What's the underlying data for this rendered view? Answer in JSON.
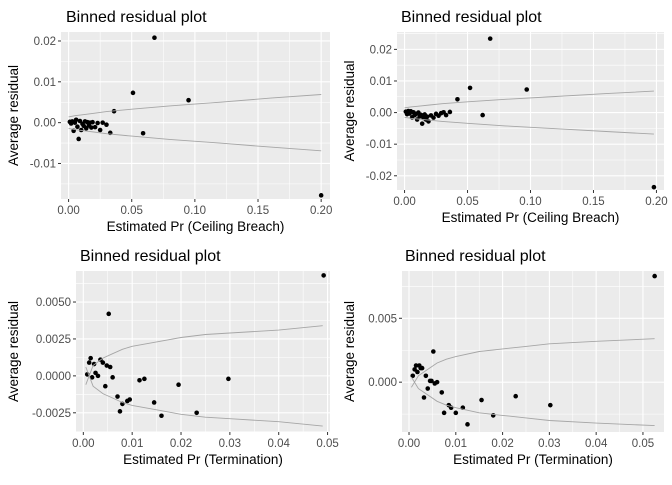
{
  "chart_data": [
    {
      "type": "scatter",
      "title": "Binned residual plot",
      "xlabel": "Estimated  Pr (Ceiling Breach)",
      "ylabel": "Average residual",
      "xlim": [
        -0.006,
        0.207
      ],
      "ylim": [
        -0.0187,
        0.0222
      ],
      "xticks": [
        0.0,
        0.05,
        0.1,
        0.15,
        0.2
      ],
      "xtick_labels": [
        "0.00",
        "0.05",
        "0.10",
        "0.15",
        "0.20"
      ],
      "yticks": [
        -0.01,
        0.0,
        0.01,
        0.02
      ],
      "ytick_labels": [
        "-0.01",
        "0.00",
        "0.01",
        "0.02"
      ],
      "grid": true,
      "series": [
        {
          "kind": "points",
          "x": [
            0.001,
            0.002,
            0.003,
            0.004,
            0.005,
            0.006,
            0.007,
            0.008,
            0.009,
            0.01,
            0.011,
            0.012,
            0.013,
            0.014,
            0.015,
            0.016,
            0.017,
            0.018,
            0.019,
            0.021,
            0.023,
            0.025,
            0.027,
            0.03,
            0.033,
            0.036,
            0.051,
            0.059,
            0.068,
            0.095,
            0.2
          ],
          "y": [
            0.0002,
            -0.0002,
            0.0003,
            -0.002,
            0.0,
            0.0007,
            -0.001,
            -0.004,
            0.0004,
            -0.0018,
            -0.0003,
            -0.0008,
            0.0003,
            -0.0014,
            0.0001,
            -0.0007,
            0.0,
            -0.0012,
            0.0001,
            -0.0011,
            -0.0001,
            -0.0018,
            0.0,
            -0.0005,
            -0.0025,
            0.0028,
            0.0073,
            -0.0026,
            0.0208,
            0.0055,
            -0.0178
          ]
        },
        {
          "kind": "upper-bound",
          "x": [
            0.0,
            0.005,
            0.01,
            0.02,
            0.03,
            0.05,
            0.08,
            0.12,
            0.16,
            0.2
          ],
          "y": [
            0.0014,
            0.0017,
            0.0019,
            0.0023,
            0.0027,
            0.0033,
            0.0041,
            0.005,
            0.006,
            0.0069
          ]
        },
        {
          "kind": "lower-bound",
          "x": [
            0.0,
            0.005,
            0.01,
            0.02,
            0.03,
            0.05,
            0.08,
            0.12,
            0.16,
            0.2
          ],
          "y": [
            -0.0014,
            -0.0017,
            -0.0019,
            -0.0023,
            -0.0027,
            -0.0033,
            -0.0041,
            -0.005,
            -0.006,
            -0.0069
          ]
        }
      ]
    },
    {
      "type": "scatter",
      "title": "Binned residual plot",
      "xlabel": "Estimated  Pr (Ceiling Breach)",
      "ylabel": "Average residual",
      "xlim": [
        -0.006,
        0.206
      ],
      "ylim": [
        -0.0245,
        0.0255
      ],
      "xticks": [
        0.0,
        0.05,
        0.1,
        0.15,
        0.2
      ],
      "xtick_labels": [
        "0.00",
        "0.05",
        "0.10",
        "0.15",
        "0.20"
      ],
      "yticks": [
        -0.02,
        -0.01,
        0.0,
        0.01,
        0.02
      ],
      "ytick_labels": [
        "-0.02",
        "-0.01",
        "0.00",
        "0.01",
        "0.02"
      ],
      "grid": true,
      "series": [
        {
          "kind": "points",
          "x": [
            0.001,
            0.002,
            0.003,
            0.004,
            0.005,
            0.006,
            0.007,
            0.008,
            0.009,
            0.01,
            0.011,
            0.012,
            0.013,
            0.014,
            0.015,
            0.016,
            0.017,
            0.018,
            0.019,
            0.021,
            0.023,
            0.025,
            0.027,
            0.029,
            0.031,
            0.033,
            0.036,
            0.042,
            0.052,
            0.062,
            0.068,
            0.097,
            0.198
          ],
          "y": [
            0.0003,
            -0.0005,
            0.0005,
            -0.0003,
            0.0004,
            -0.0015,
            0.0001,
            -0.0008,
            -0.0004,
            -0.0022,
            0.0,
            -0.0012,
            -0.0007,
            -0.0035,
            -0.0017,
            -0.0006,
            -0.0022,
            -0.0013,
            -0.0028,
            -0.0009,
            -0.0016,
            -0.0004,
            -0.001,
            -0.0002,
            0.0001,
            -0.0008,
            0.0002,
            0.0042,
            0.0078,
            -0.0008,
            0.0234,
            0.0073,
            -0.0236
          ]
        },
        {
          "kind": "upper-bound",
          "x": [
            0.0,
            0.005,
            0.01,
            0.02,
            0.03,
            0.05,
            0.08,
            0.12,
            0.16,
            0.198
          ],
          "y": [
            0.0015,
            0.0018,
            0.002,
            0.0024,
            0.0028,
            0.0034,
            0.0042,
            0.0051,
            0.006,
            0.0068
          ]
        },
        {
          "kind": "lower-bound",
          "x": [
            0.0,
            0.005,
            0.01,
            0.02,
            0.03,
            0.05,
            0.08,
            0.12,
            0.16,
            0.198
          ],
          "y": [
            -0.0015,
            -0.0018,
            -0.002,
            -0.0024,
            -0.0028,
            -0.0034,
            -0.0042,
            -0.0051,
            -0.006,
            -0.0068
          ]
        }
      ]
    },
    {
      "type": "scatter",
      "title": "Binned residual plot",
      "xlabel": "Estimated  Pr (Termination)",
      "ylabel": "Average residual",
      "xlim": [
        -0.0015,
        0.0505
      ],
      "ylim": [
        -0.0038,
        0.0071
      ],
      "xticks": [
        0.0,
        0.01,
        0.02,
        0.03,
        0.04,
        0.05
      ],
      "xtick_labels": [
        "0.00",
        "0.01",
        "0.02",
        "0.03",
        "0.04",
        "0.05"
      ],
      "yticks": [
        -0.0025,
        0.0,
        0.0025,
        0.005
      ],
      "ytick_labels": [
        "-0.0025",
        "0.0000",
        "0.0025",
        "0.0050"
      ],
      "grid": true,
      "series": [
        {
          "kind": "points",
          "x": [
            0.0008,
            0.0012,
            0.0015,
            0.0018,
            0.0022,
            0.0025,
            0.003,
            0.0035,
            0.004,
            0.0045,
            0.0048,
            0.0052,
            0.0055,
            0.006,
            0.007,
            0.0075,
            0.008,
            0.009,
            0.0095,
            0.0115,
            0.0125,
            0.0145,
            0.016,
            0.0195,
            0.0232,
            0.0297,
            0.0492
          ],
          "y": [
            0.0001,
            0.0009,
            0.0012,
            -0.0001,
            0.0008,
            0.0002,
            0.0,
            0.0011,
            0.0009,
            -0.0007,
            0.0007,
            0.0042,
            0.0006,
            -0.0001,
            -0.0014,
            -0.0024,
            -0.0019,
            -0.0017,
            -0.0016,
            -0.0003,
            -0.0002,
            -0.0018,
            -0.0027,
            -0.0006,
            -0.0025,
            -0.0002,
            0.0068
          ]
        },
        {
          "kind": "upper-bound",
          "x": [
            0.0005,
            0.002,
            0.004,
            0.006,
            0.008,
            0.01,
            0.015,
            0.02,
            0.025,
            0.03,
            0.04,
            0.049
          ],
          "y": [
            -0.0006,
            0.0007,
            0.0012,
            0.0015,
            0.0018,
            0.002,
            0.0023,
            0.0026,
            0.0028,
            0.0029,
            0.0031,
            0.0034
          ]
        },
        {
          "kind": "lower-bound",
          "x": [
            0.0005,
            0.002,
            0.004,
            0.006,
            0.008,
            0.01,
            0.015,
            0.02,
            0.025,
            0.03,
            0.04,
            0.049
          ],
          "y": [
            0.0006,
            -0.0007,
            -0.0012,
            -0.0015,
            -0.0018,
            -0.002,
            -0.0023,
            -0.0026,
            -0.0028,
            -0.0029,
            -0.0031,
            -0.0034
          ]
        }
      ]
    },
    {
      "type": "scatter",
      "title": "Binned residual plot",
      "xlabel": "Estimated  Pr (Termination)",
      "ylabel": "Average residual",
      "xlim": [
        -0.0015,
        0.0545
      ],
      "ylim": [
        -0.0039,
        0.0087
      ],
      "xticks": [
        0.0,
        0.01,
        0.02,
        0.03,
        0.04,
        0.05
      ],
      "xtick_labels": [
        "0.00",
        "0.01",
        "0.02",
        "0.03",
        "0.04",
        "0.05"
      ],
      "yticks": [
        0.0,
        0.005
      ],
      "ytick_labels": [
        "0.000",
        "0.005"
      ],
      "grid": true,
      "series": [
        {
          "kind": "points",
          "x": [
            0.0008,
            0.0012,
            0.0015,
            0.0018,
            0.0022,
            0.0025,
            0.0028,
            0.0032,
            0.0036,
            0.004,
            0.0045,
            0.0048,
            0.0052,
            0.0055,
            0.006,
            0.007,
            0.0075,
            0.0085,
            0.009,
            0.01,
            0.0115,
            0.0125,
            0.0155,
            0.018,
            0.0228,
            0.0302,
            0.0525
          ],
          "y": [
            0.0005,
            0.001,
            0.0013,
            0.0008,
            0.0013,
            0.0011,
            0.0011,
            -0.0012,
            0.0005,
            -0.0005,
            0.0001,
            0.0001,
            0.0024,
            -0.0001,
            0.0,
            -0.0008,
            -0.0024,
            -0.0018,
            -0.002,
            -0.0024,
            -0.002,
            -0.0033,
            -0.0014,
            -0.0026,
            -0.0011,
            -0.0018,
            0.0083
          ]
        },
        {
          "kind": "upper-bound",
          "x": [
            0.0005,
            0.002,
            0.004,
            0.006,
            0.008,
            0.01,
            0.015,
            0.02,
            0.025,
            0.03,
            0.04,
            0.0525
          ],
          "y": [
            -0.0004,
            0.0005,
            0.001,
            0.0015,
            0.0018,
            0.002,
            0.0024,
            0.0026,
            0.0028,
            0.003,
            0.0032,
            0.0034
          ]
        },
        {
          "kind": "lower-bound",
          "x": [
            0.0005,
            0.002,
            0.004,
            0.006,
            0.008,
            0.01,
            0.015,
            0.02,
            0.025,
            0.03,
            0.04,
            0.0525
          ],
          "y": [
            0.0004,
            -0.0005,
            -0.001,
            -0.0015,
            -0.0018,
            -0.002,
            -0.0024,
            -0.0026,
            -0.0028,
            -0.003,
            -0.0032,
            -0.0034
          ]
        }
      ]
    }
  ]
}
